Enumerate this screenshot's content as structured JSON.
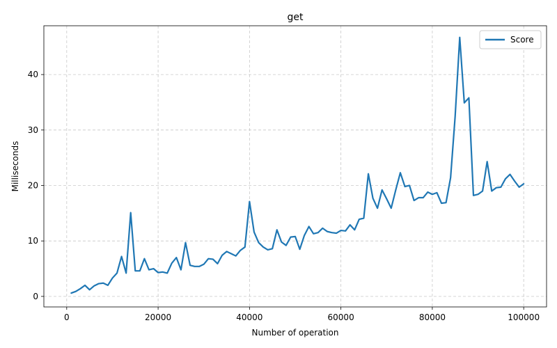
{
  "chart_data": {
    "type": "line",
    "title": "get",
    "xlabel": "Number of operation",
    "ylabel": "Milliseconds",
    "xlim": [
      -5000,
      105000
    ],
    "ylim": [
      -1.9,
      48.8
    ],
    "xticks": [
      0,
      20000,
      40000,
      60000,
      80000,
      100000
    ],
    "yticks": [
      0,
      10,
      20,
      30,
      40
    ],
    "grid": true,
    "legend_position": "top-right",
    "series": [
      {
        "name": "Score",
        "color": "#1f77b4",
        "x": [
          1000,
          2000,
          3000,
          4000,
          5000,
          6000,
          7000,
          8000,
          9000,
          10000,
          11000,
          12000,
          13000,
          14000,
          15000,
          16000,
          17000,
          18000,
          19000,
          20000,
          21000,
          22000,
          23000,
          24000,
          25000,
          26000,
          27000,
          28000,
          29000,
          30000,
          31000,
          32000,
          33000,
          34000,
          35000,
          36000,
          37000,
          38000,
          39000,
          40000,
          41000,
          42000,
          43000,
          44000,
          45000,
          46000,
          47000,
          48000,
          49000,
          50000,
          51000,
          52000,
          53000,
          54000,
          55000,
          56000,
          57000,
          58000,
          59000,
          60000,
          61000,
          62000,
          63000,
          64000,
          65000,
          66000,
          67000,
          68000,
          69000,
          70000,
          71000,
          72000,
          73000,
          74000,
          75000,
          76000,
          77000,
          78000,
          79000,
          80000,
          81000,
          82000,
          83000,
          84000,
          85000,
          86000,
          87000,
          88000,
          89000,
          90000,
          91000,
          92000,
          93000,
          94000,
          95000,
          96000,
          97000,
          98000,
          99000,
          100000
        ],
        "y": [
          0.6,
          0.9,
          1.4,
          2.0,
          1.2,
          1.9,
          2.3,
          2.4,
          2.0,
          3.3,
          4.2,
          7.2,
          4.2,
          15.1,
          4.6,
          4.6,
          6.8,
          4.8,
          5.0,
          4.3,
          4.4,
          4.2,
          6.0,
          7.0,
          4.8,
          9.7,
          5.6,
          5.4,
          5.4,
          5.8,
          6.8,
          6.7,
          5.9,
          7.4,
          8.1,
          7.7,
          7.3,
          8.3,
          8.9,
          17.1,
          11.6,
          9.7,
          8.9,
          8.4,
          8.6,
          12.0,
          9.8,
          9.2,
          10.7,
          10.8,
          8.5,
          11.0,
          12.6,
          11.3,
          11.5,
          12.3,
          11.7,
          11.5,
          11.4,
          11.9,
          11.8,
          12.9,
          12.0,
          13.9,
          14.1,
          22.1,
          17.7,
          15.9,
          19.2,
          17.6,
          15.9,
          19.2,
          22.3,
          19.8,
          20.0,
          17.3,
          17.8,
          17.8,
          18.8,
          18.4,
          18.7,
          16.8,
          16.9,
          21.4,
          32.5,
          46.7,
          34.9,
          35.8,
          18.2,
          18.4,
          19.0,
          24.3,
          19.0,
          19.6,
          19.7,
          21.2,
          22.0,
          20.8,
          19.7,
          20.3
        ]
      }
    ]
  }
}
